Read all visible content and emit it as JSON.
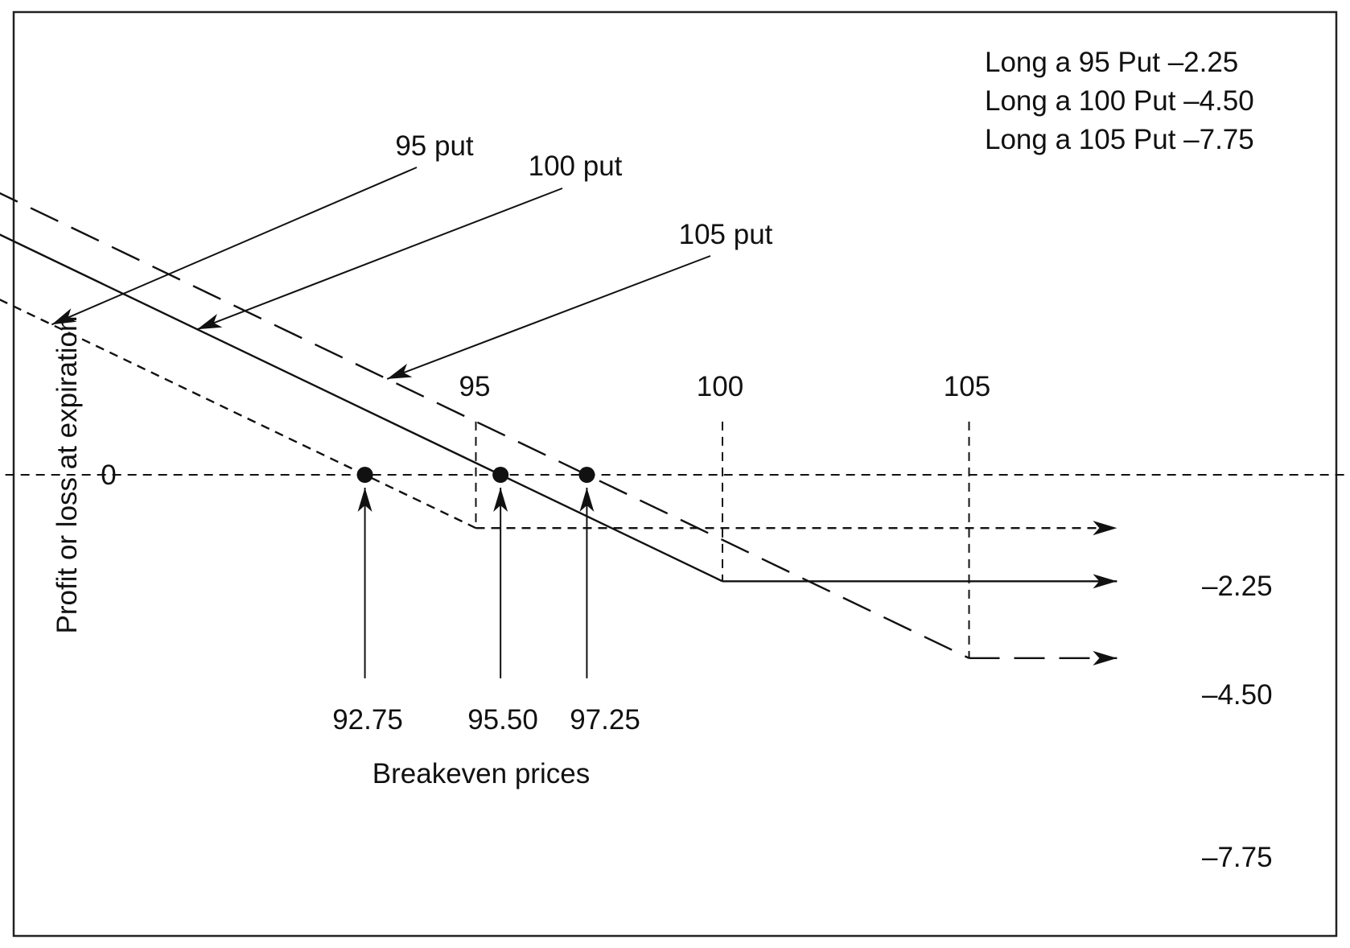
{
  "chart_data": {
    "type": "line",
    "title": "",
    "xlabel": "",
    "ylabel": "Profit or loss at expiration",
    "zero_label": "0",
    "strike_ticks": [
      "95",
      "100",
      "105"
    ],
    "xlim": [
      80.5,
      114.5
    ],
    "ylim": [
      -9.5,
      11.5
    ],
    "grid": false,
    "legend": {
      "placement": "top-right",
      "lines": [
        "Long a 95 Put –2.25",
        "Long a 100 Put –4.50",
        "Long a 105 Put –7.75"
      ]
    },
    "series": [
      {
        "name": "95 put",
        "strike": 95,
        "premium": 2.25,
        "end_label": "–2.25",
        "style": "short-dash",
        "points": [
          [
            84.5,
            8.25
          ],
          [
            95,
            -2.25
          ],
          [
            108,
            -2.25
          ]
        ]
      },
      {
        "name": "100 put",
        "strike": 100,
        "premium": 4.5,
        "end_label": "–4.50",
        "style": "solid",
        "points": [
          [
            83,
            12.5
          ],
          [
            100,
            -4.5
          ],
          [
            108,
            -4.5
          ]
        ]
      },
      {
        "name": "105 put",
        "strike": 105,
        "premium": 7.75,
        "end_label": "–7.75",
        "style": "long-dash",
        "points": [
          [
            83.5,
            13.75
          ],
          [
            105,
            -7.75
          ],
          [
            108,
            -7.75
          ]
        ]
      }
    ],
    "breakeven": {
      "label": "Breakeven prices",
      "points": [
        {
          "x": 92.75,
          "label": "92.75"
        },
        {
          "x": 95.5,
          "label": "95.50"
        },
        {
          "x": 97.25,
          "label": "97.25"
        }
      ]
    }
  }
}
